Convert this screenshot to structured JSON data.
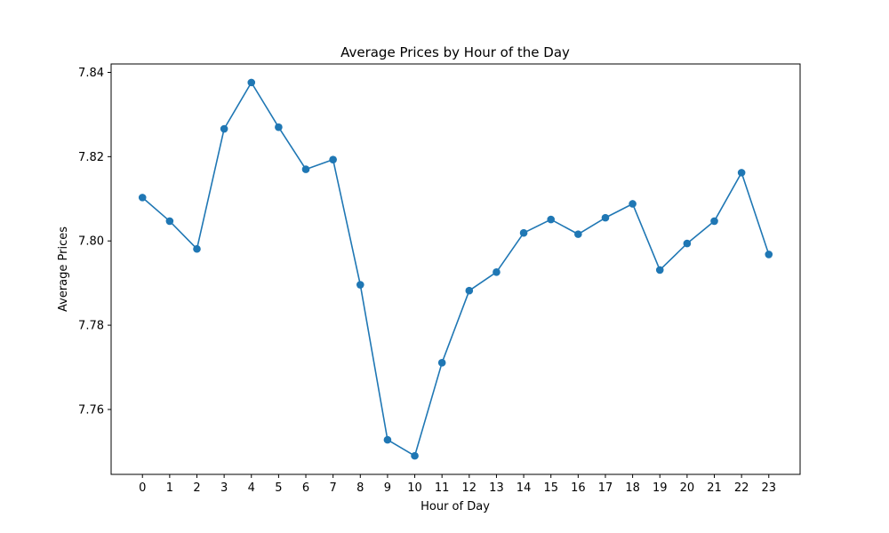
{
  "chart_data": {
    "type": "line",
    "title": "Average Prices by Hour of the Day",
    "xlabel": "Hour of Day",
    "ylabel": "Average Prices",
    "x": [
      0,
      1,
      2,
      3,
      4,
      5,
      6,
      7,
      8,
      9,
      10,
      11,
      12,
      13,
      14,
      15,
      16,
      17,
      18,
      19,
      20,
      21,
      22,
      23
    ],
    "series": [
      {
        "values": [
          7.8103,
          7.8047,
          7.7981,
          7.8266,
          7.8376,
          7.827,
          7.817,
          7.8193,
          7.7896,
          7.7528,
          7.749,
          7.7711,
          7.7882,
          7.7926,
          7.8019,
          7.8051,
          7.8016,
          7.8055,
          7.8088,
          7.7931,
          7.7994,
          7.8047,
          7.8162,
          7.7968
        ]
      }
    ],
    "xlim": [
      -1.15,
      24.15
    ],
    "ylim": [
      7.7446,
      7.842
    ],
    "yticks": [
      7.76,
      7.78,
      7.8,
      7.82,
      7.84
    ],
    "ytick_labels": [
      "7.76",
      "7.78",
      "7.80",
      "7.82",
      "7.84"
    ],
    "xtick_labels": [
      "0",
      "1",
      "2",
      "3",
      "4",
      "5",
      "6",
      "7",
      "8",
      "9",
      "10",
      "11",
      "12",
      "13",
      "14",
      "15",
      "16",
      "17",
      "18",
      "19",
      "20",
      "21",
      "22",
      "23"
    ],
    "grid": false,
    "legend": "none",
    "line_color": "#1f77b4",
    "marker": "circle"
  }
}
